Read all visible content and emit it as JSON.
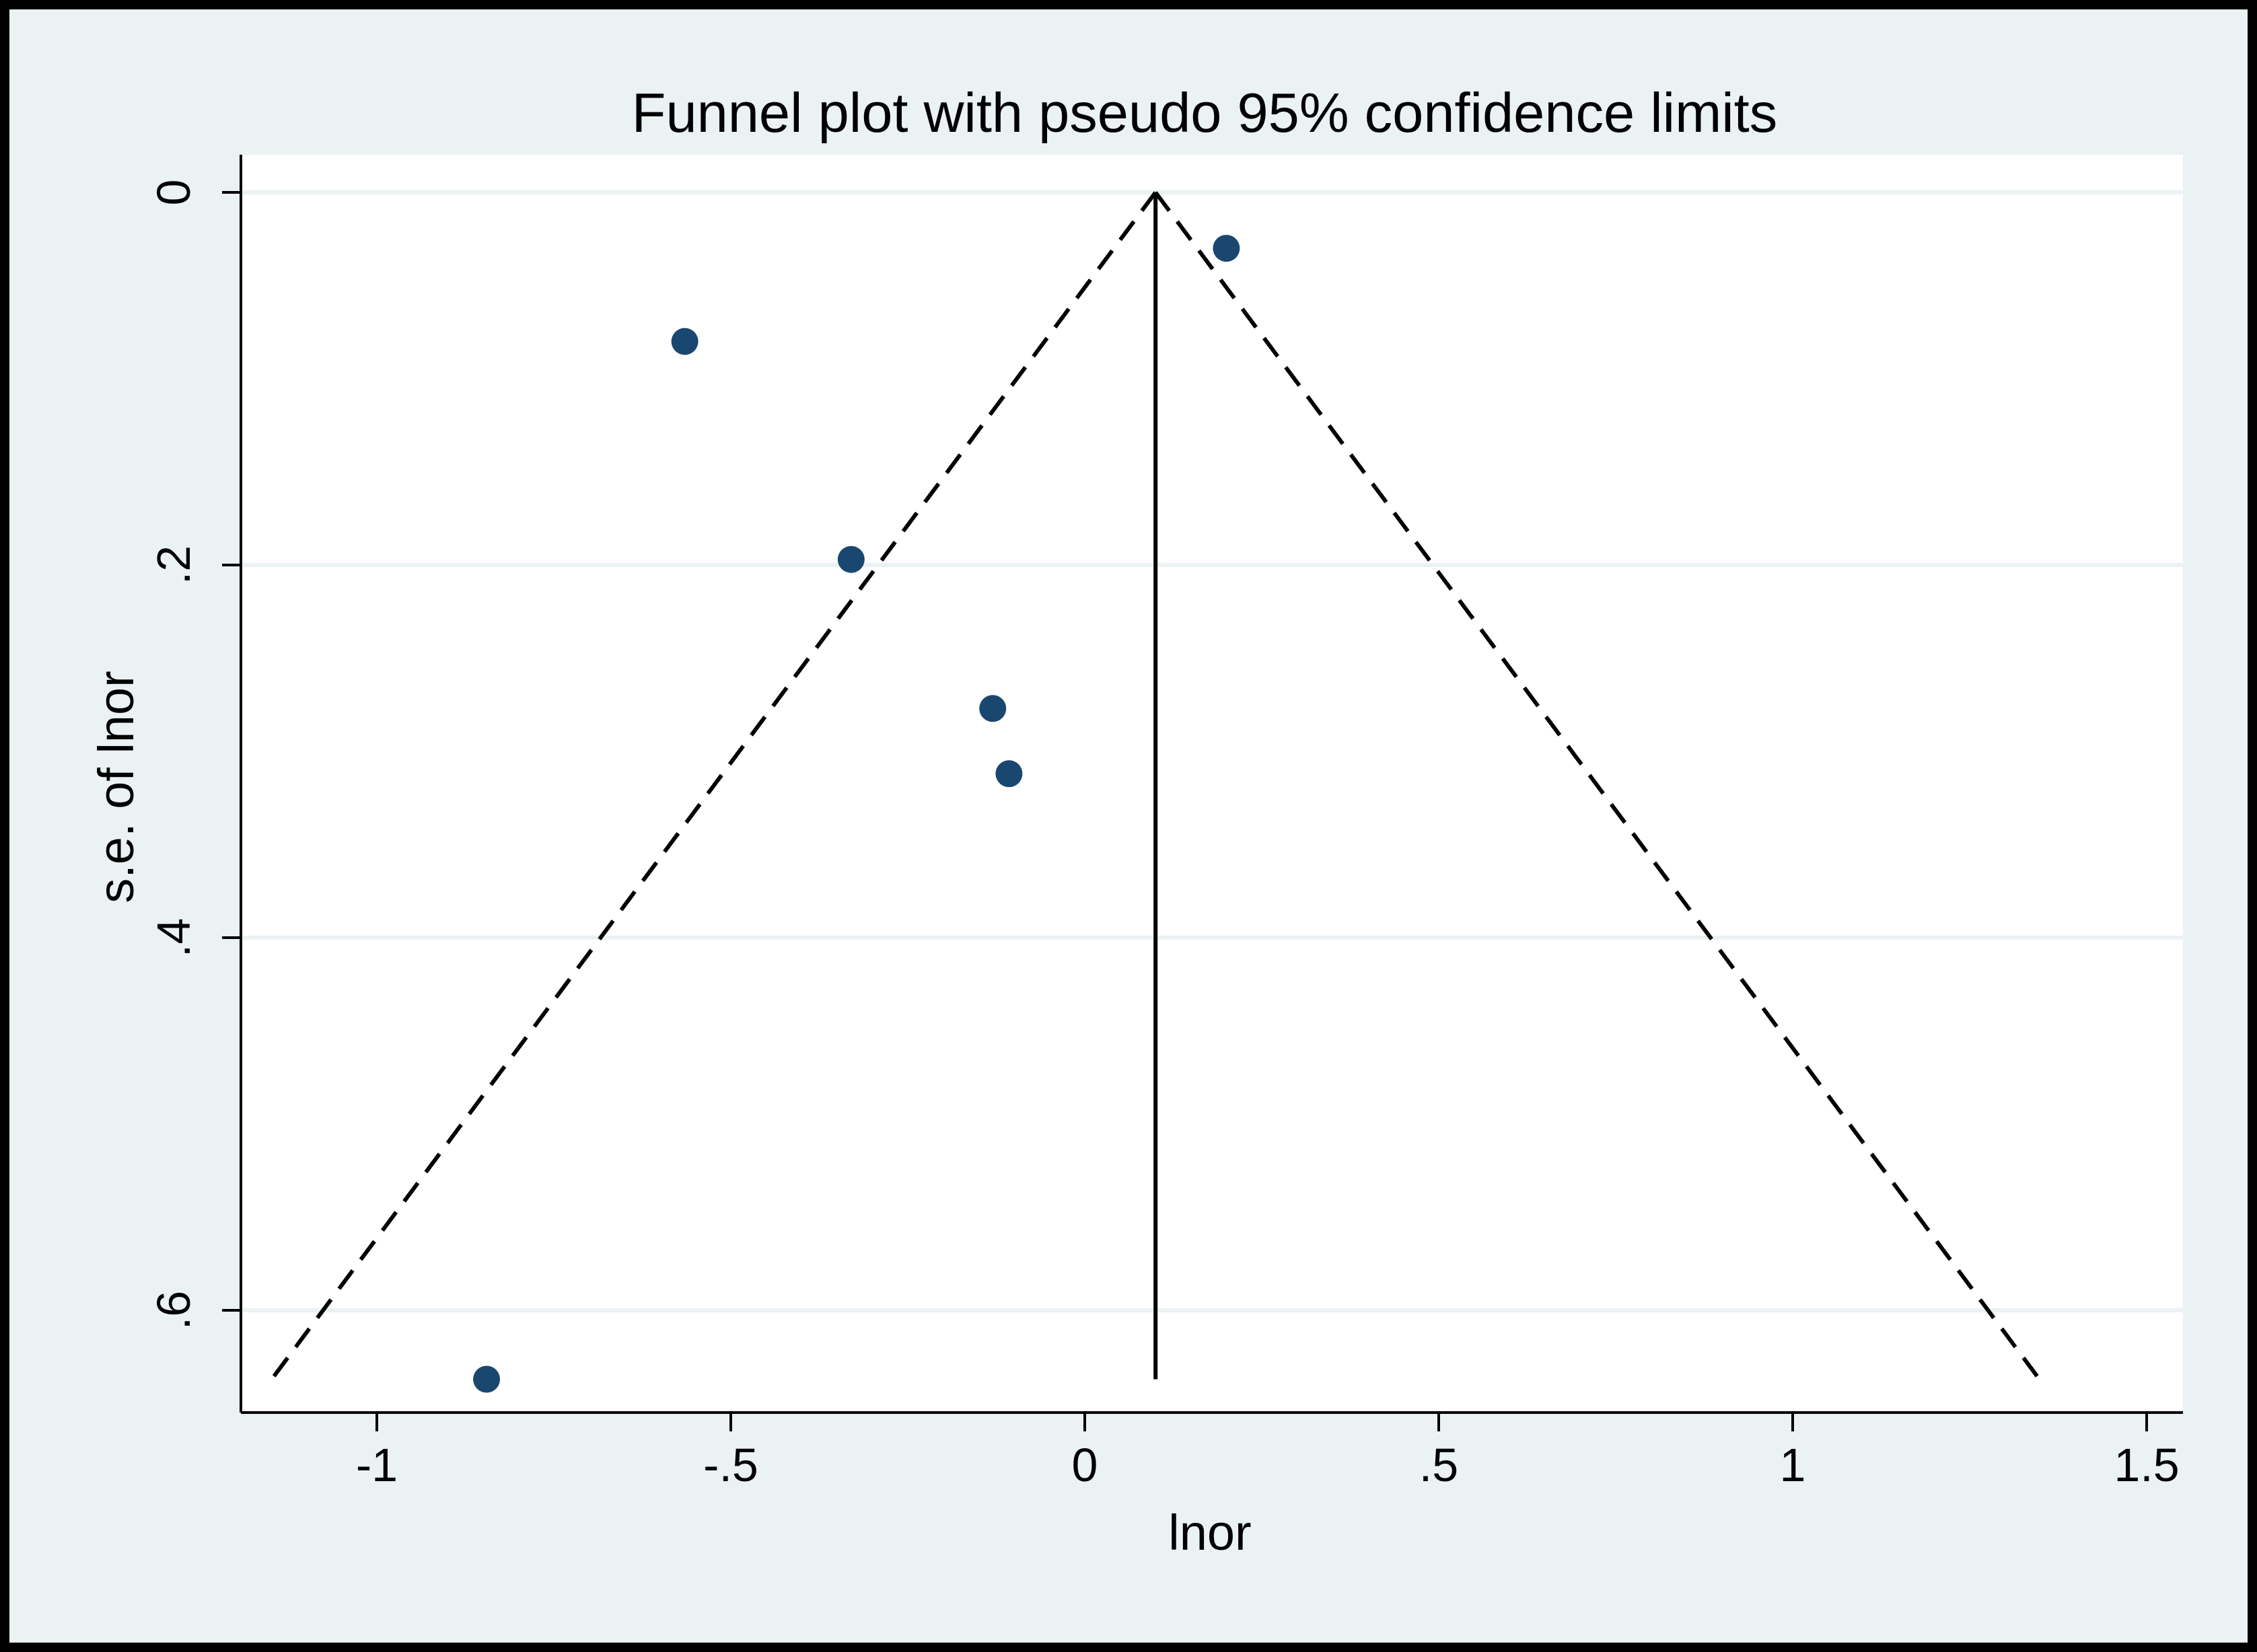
{
  "chart_data": {
    "type": "scatter",
    "title": "Funnel plot with pseudo 95% confidence limits",
    "xlabel": "lnor",
    "ylabel": "s.e. of lnor",
    "xlim": [
      -1.2,
      1.55
    ],
    "ylim": [
      0.655,
      -0.02
    ],
    "y_reversed": true,
    "x_ticks": [
      -1,
      -0.5,
      0,
      0.5,
      1,
      1.5
    ],
    "x_tick_labels": [
      "-1",
      "-.5",
      "0",
      ".5",
      "1",
      "1.5"
    ],
    "y_ticks": [
      0,
      0.2,
      0.4,
      0.6
    ],
    "y_tick_labels": [
      "0",
      ".2",
      ".4",
      ".6"
    ],
    "grid": true,
    "series": [
      {
        "points": [
          {
            "x": 0.2,
            "y": 0.03
          },
          {
            "x": -0.565,
            "y": 0.08
          },
          {
            "x": -0.33,
            "y": 0.197
          },
          {
            "x": -0.13,
            "y": 0.277
          },
          {
            "x": -0.107,
            "y": 0.312
          },
          {
            "x": -0.845,
            "y": 0.637
          }
        ]
      }
    ],
    "pooled_estimate": 0.1,
    "funnel_se_max": 0.637,
    "funnel_multiplier": 1.96,
    "colors": {
      "outer_background": "#eaf2f3",
      "plot_background": "#ffffff",
      "marker": "#1a476f",
      "gridline": "#eaf2f3",
      "line": "#000000",
      "frame": "#000000"
    }
  }
}
